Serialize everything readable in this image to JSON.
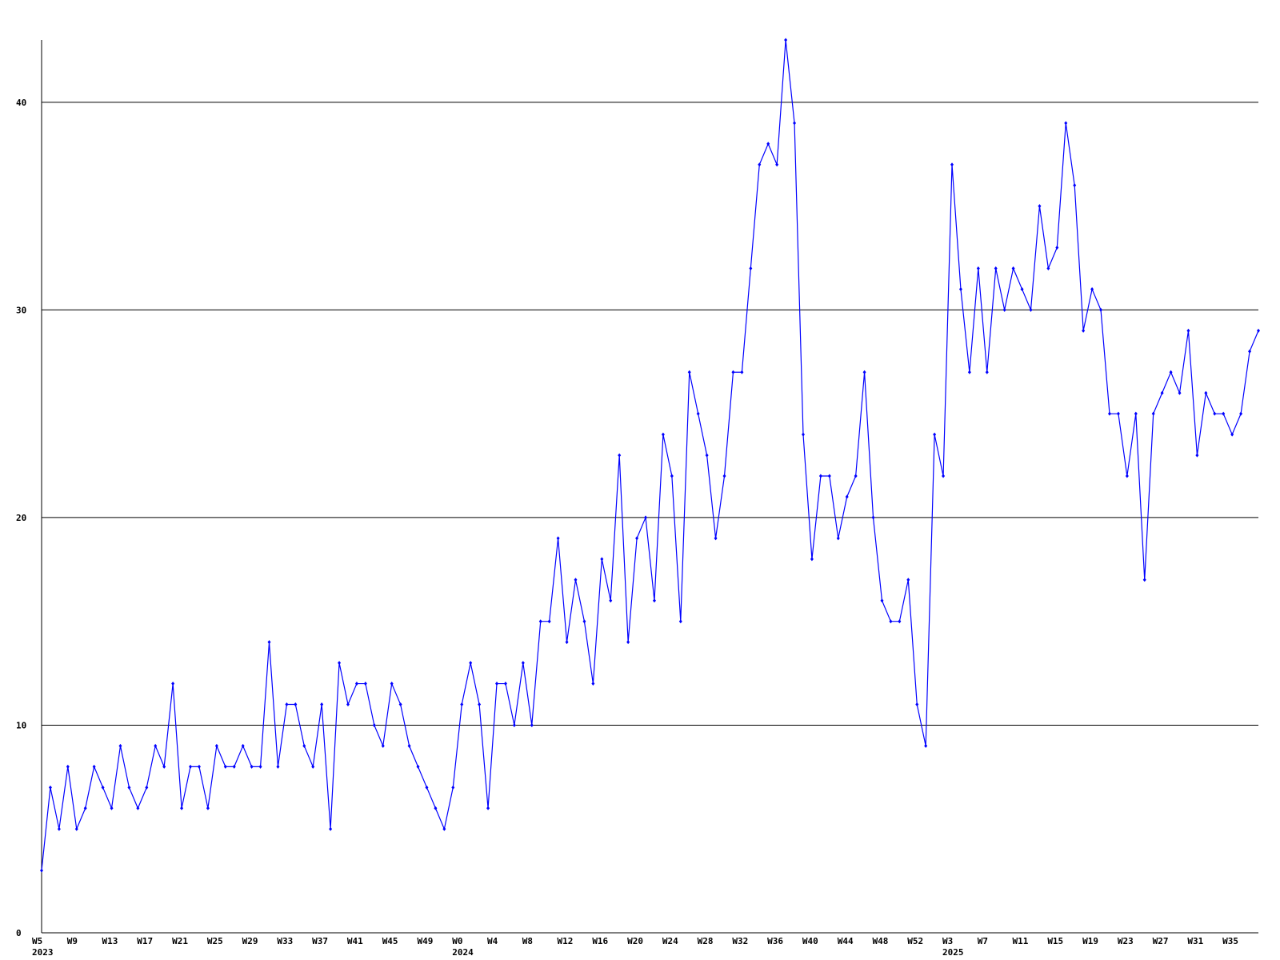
{
  "chart_data": {
    "type": "line",
    "categories": [
      "W5",
      null,
      null,
      null,
      "W9",
      null,
      null,
      null,
      "W13",
      null,
      null,
      null,
      "W17",
      null,
      null,
      null,
      "W21",
      null,
      null,
      null,
      "W25",
      null,
      null,
      null,
      "W29",
      null,
      null,
      null,
      "W33",
      null,
      null,
      null,
      "W37",
      null,
      null,
      null,
      "W41",
      null,
      null,
      null,
      "W45",
      null,
      null,
      null,
      "W49",
      null,
      null,
      null,
      "W0",
      null,
      null,
      null,
      "W4",
      null,
      null,
      null,
      "W8",
      null,
      null,
      null,
      "W12",
      null,
      null,
      null,
      "W16",
      null,
      null,
      null,
      "W20",
      null,
      null,
      null,
      "W24",
      null,
      null,
      null,
      "W28",
      null,
      null,
      null,
      "W32",
      null,
      null,
      null,
      "W36",
      null,
      null,
      null,
      "W40",
      null,
      null,
      null,
      "W44",
      null,
      null,
      null,
      "W48",
      null,
      null,
      null,
      "W52",
      null,
      null,
      null,
      "W3",
      null,
      null,
      null,
      "W7",
      null,
      null,
      null,
      "W11",
      null,
      null,
      null,
      "W15",
      null,
      null,
      null,
      "W19",
      null,
      null,
      null,
      "W23",
      null,
      null,
      null,
      "W27",
      null,
      null,
      null,
      "W31",
      null,
      null,
      null,
      "W35",
      null,
      null,
      null
    ],
    "years": [
      "2023",
      null,
      null,
      null,
      null,
      null,
      null,
      null,
      null,
      null,
      null,
      null,
      null,
      null,
      null,
      null,
      null,
      null,
      null,
      null,
      null,
      null,
      null,
      null,
      null,
      null,
      null,
      null,
      null,
      null,
      null,
      null,
      null,
      null,
      null,
      null,
      null,
      null,
      null,
      null,
      null,
      null,
      null,
      null,
      null,
      null,
      null,
      null,
      "2024",
      null,
      null,
      null,
      null,
      null,
      null,
      null,
      null,
      null,
      null,
      null,
      null,
      null,
      null,
      null,
      null,
      null,
      null,
      null,
      null,
      null,
      null,
      null,
      null,
      null,
      null,
      null,
      null,
      null,
      null,
      null,
      null,
      null,
      null,
      null,
      null,
      null,
      null,
      null,
      null,
      null,
      null,
      null,
      null,
      null,
      null,
      null,
      null,
      null,
      null,
      null,
      null,
      null,
      null,
      null,
      "2025",
      null,
      null,
      null,
      null,
      null,
      null,
      null,
      null,
      null,
      null,
      null,
      null,
      null,
      null,
      null,
      null,
      null,
      null,
      null,
      null,
      null,
      null,
      null,
      null,
      null,
      null,
      null,
      null,
      null,
      null,
      null,
      null,
      null,
      null,
      null
    ],
    "series": [
      {
        "color": "#0000ff",
        "values": [
          3,
          7,
          5,
          8,
          5,
          6,
          8,
          7,
          6,
          9,
          7,
          6,
          7,
          9,
          8,
          12,
          6,
          8,
          8,
          6,
          9,
          8,
          8,
          9,
          8,
          8,
          14,
          8,
          11,
          11,
          9,
          8,
          11,
          5,
          13,
          11,
          12,
          12,
          10,
          9,
          12,
          11,
          9,
          8,
          7,
          6,
          5,
          7,
          11,
          13,
          11,
          6,
          12,
          12,
          10,
          13,
          10,
          15,
          15,
          19,
          14,
          17,
          15,
          12,
          18,
          16,
          23,
          14,
          19,
          20,
          16,
          24,
          22,
          15,
          27,
          25,
          23,
          19,
          22,
          27,
          27,
          32,
          37,
          38,
          37,
          43,
          39,
          24,
          18,
          22,
          22,
          19,
          21,
          22,
          27,
          20,
          16,
          15,
          15,
          17,
          11,
          9,
          24,
          22,
          37,
          31,
          27,
          32,
          27,
          32,
          30,
          32,
          31,
          30,
          35,
          32,
          33,
          39,
          36,
          29,
          31,
          30,
          25,
          25,
          22,
          25,
          17,
          25,
          26,
          27,
          26,
          29,
          23,
          26,
          25,
          25,
          24,
          25,
          28,
          29
        ]
      }
    ],
    "ylim": [
      0,
      43
    ],
    "yticks": [
      0,
      10,
      20,
      30,
      40
    ],
    "grid": true
  }
}
